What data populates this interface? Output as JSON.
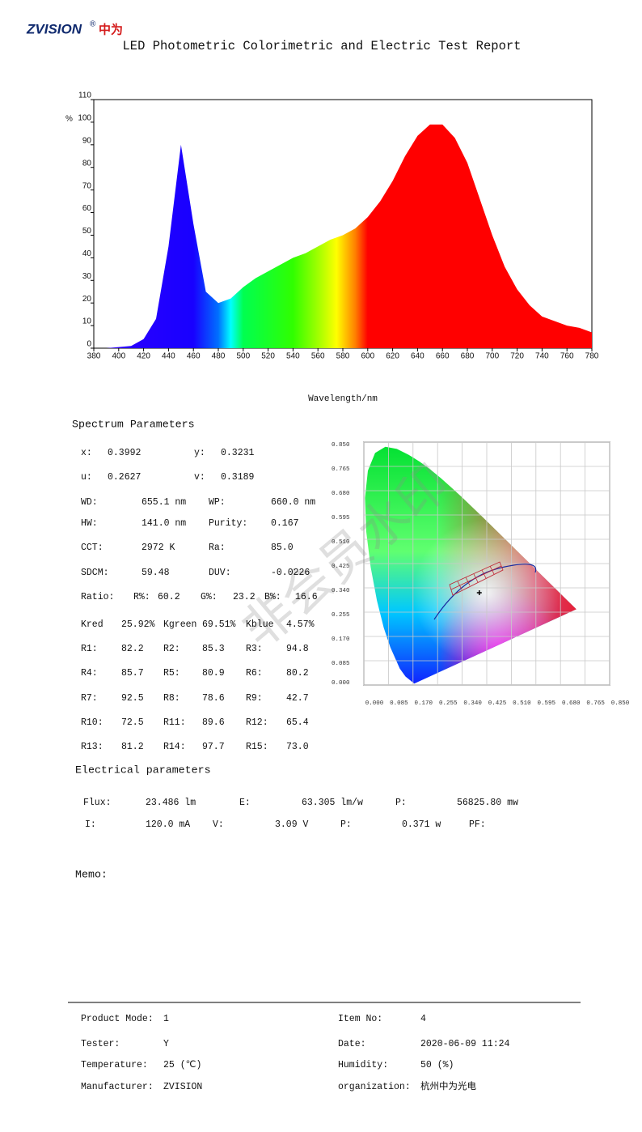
{
  "header": {
    "logo": "ZVISION",
    "logo_mark": "®",
    "logo_cn": "中为",
    "title": "LED Photometric Colorimetric and Electric Test Report"
  },
  "chart_data": {
    "type": "area",
    "y_label": "%",
    "x_label": "Wavelength/nm",
    "x": [
      380,
      390,
      400,
      410,
      420,
      430,
      440,
      450,
      460,
      470,
      480,
      490,
      500,
      510,
      520,
      530,
      540,
      550,
      560,
      570,
      580,
      590,
      600,
      610,
      620,
      630,
      640,
      650,
      660,
      670,
      680,
      690,
      700,
      710,
      720,
      730,
      740,
      750,
      760,
      770,
      780
    ],
    "values": [
      0,
      0,
      0.5,
      1,
      4,
      13,
      45,
      90,
      55,
      25,
      20,
      22,
      27,
      31,
      34,
      37,
      40,
      42,
      45,
      48,
      50,
      53,
      58,
      65,
      74,
      85,
      94,
      99,
      99,
      93,
      82,
      66,
      50,
      36,
      26,
      19,
      14,
      12,
      10,
      9,
      7
    ],
    "xlim": [
      380,
      780
    ],
    "ylim": [
      0,
      110
    ],
    "xticks": [
      380,
      400,
      420,
      440,
      460,
      480,
      500,
      520,
      540,
      560,
      580,
      600,
      620,
      640,
      660,
      680,
      700,
      720,
      740,
      760,
      780
    ],
    "yticks": [
      0,
      10,
      20,
      30,
      40,
      50,
      60,
      70,
      80,
      90,
      100,
      110
    ]
  },
  "spectrum_params": {
    "title": "Spectrum Parameters",
    "rows": [
      [
        {
          "label": "x:",
          "value": 0.3992
        },
        {
          "label": "y:",
          "value": 0.3231
        }
      ],
      [
        {
          "label": "u:",
          "value": "0.2627"
        },
        {
          "label": "v:",
          "value": "0.3189"
        }
      ],
      [
        {
          "label": "WD:",
          "value": "655.1 nm"
        },
        {
          "label": "WP:",
          "value": "660.0 nm"
        }
      ],
      [
        {
          "label": "HW:",
          "value": "141.0 nm"
        },
        {
          "label": "Purity:",
          "value": "0.167"
        }
      ],
      [
        {
          "label": "CCT:",
          "value": "2972 K"
        },
        {
          "label": "Ra:",
          "value": "85.0"
        }
      ],
      [
        {
          "label": "SDCM:",
          "value": "59.48"
        },
        {
          "label": "DUV:",
          "value": "-0.0226"
        }
      ],
      [
        {
          "label": "Ratio:"
        },
        {
          "label": "R%:",
          "value": "60.2"
        },
        {
          "label": "G%:",
          "value": "23.2"
        },
        {
          "label": "B%:",
          "value": "16.6"
        }
      ],
      [
        {
          "label": "Kred",
          "value": "25.92%"
        },
        {
          "label": "Kgreen",
          "value": "69.51%"
        },
        {
          "label": "Kblue",
          "value": "4.57%"
        }
      ],
      [
        {
          "label": "R1:",
          "value": "82.2"
        },
        {
          "label": "R2:",
          "value": "85.3"
        },
        {
          "label": "R3:",
          "value": "94.8"
        }
      ],
      [
        {
          "label": "R4:",
          "value": "85.7"
        },
        {
          "label": "R5:",
          "value": "80.9"
        },
        {
          "label": "R6:",
          "value": "80.2"
        }
      ],
      [
        {
          "label": "R7:",
          "value": "92.5"
        },
        {
          "label": "R8:",
          "value": "78.6"
        },
        {
          "label": "R9:",
          "value": "42.7"
        }
      ],
      [
        {
          "label": "R10:",
          "value": "72.5"
        },
        {
          "label": "R11:",
          "value": "89.6"
        },
        {
          "label": "R12:",
          "value": "65.4"
        }
      ],
      [
        {
          "label": "R13:",
          "value": "81.2"
        },
        {
          "label": "R14:",
          "value": "97.7"
        },
        {
          "label": "R15:",
          "value": "73.0"
        }
      ]
    ]
  },
  "cie": {
    "xlim": [
      0,
      0.85
    ],
    "ylim": [
      0,
      0.85
    ],
    "grid": true,
    "xticks": [
      {
        "value": 0,
        "label": "0.000"
      },
      0.085,
      {
        "value": 0.17,
        "label": "0.170"
      },
      0.255,
      {
        "value": 0.34,
        "label": "0.340"
      },
      0.425,
      {
        "value": 0.51,
        "label": "0.510"
      },
      0.595,
      {
        "value": 0.68,
        "label": "0.680"
      },
      0.765,
      {
        "value": 0.85,
        "label": "0.850"
      }
    ],
    "yticks": [
      {
        "value": 0,
        "label": "0.000"
      },
      0.085,
      {
        "value": 0.17,
        "label": "0.170"
      },
      0.255,
      {
        "value": 0.34,
        "label": "0.340"
      },
      0.425,
      {
        "value": 0.51,
        "label": "0.510"
      },
      0.595,
      {
        "value": 0.68,
        "label": "0.680"
      },
      0.765,
      {
        "value": 0.85,
        "label": "0.850"
      }
    ]
  },
  "watermark": "非会员水印",
  "electrical": {
    "title": "Electrical parameters",
    "rows": [
      [
        {
          "label": "Flux:",
          "value": "23.486 lm"
        },
        {
          "label": "E:",
          "value": "63.305 lm/w"
        },
        {
          "label": "P:",
          "value": "56825.80 mw"
        }
      ],
      [
        {
          "label": "I:",
          "value": "120.0 mA"
        },
        {
          "label": "V:",
          "value": "3.09 V"
        },
        {
          "label": "P:",
          "value": "0.371 w"
        },
        {
          "label": "PF:"
        }
      ]
    ]
  },
  "memo": {
    "label": "Memo:"
  },
  "footer": {
    "rows": [
      [
        {
          "label": "Product Mode:",
          "value": "1"
        },
        {
          "label": "Item No:",
          "value": "4"
        }
      ],
      [
        {
          "label": "Tester:",
          "value": "Y"
        },
        {
          "label": "Date:",
          "value": "2020-06-09 11:24"
        }
      ],
      [
        {
          "label": "Temperature:",
          "value": "25 (℃)"
        },
        {
          "label": "Humidity:",
          "value": "50 (%)"
        }
      ],
      [
        {
          "label": "Manufacturer:",
          "value": "ZVISION"
        },
        {
          "label": "organization:",
          "value": "杭州中为光电"
        }
      ]
    ]
  }
}
